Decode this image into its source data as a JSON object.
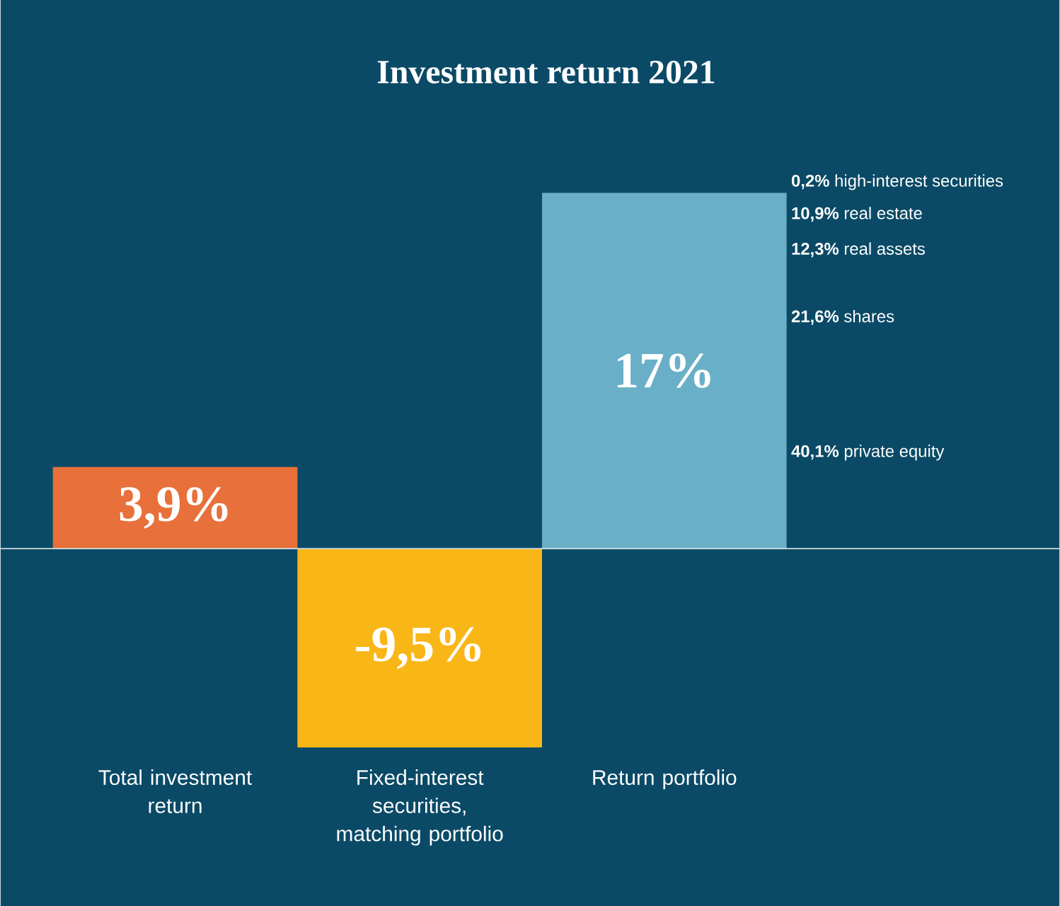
{
  "chart_data": {
    "type": "bar",
    "title": "Investment return 2021",
    "categories": [
      "Total investment return",
      "Fixed-interest securities, matching portfolio",
      "Return portfolio"
    ],
    "values": [
      3.9,
      -9.5,
      17
    ],
    "colors": [
      "#e8703a",
      "#f9b617",
      "#6aafc8"
    ],
    "value_labels": [
      "3,9%",
      "-9,5%",
      "17%"
    ],
    "annotations": [
      "**0,2%** high-interest securities",
      "**10,9%** real estate",
      "**12,3%** real assets",
      "**21,6%** shares",
      "**40,1%** private equity"
    ]
  }
}
